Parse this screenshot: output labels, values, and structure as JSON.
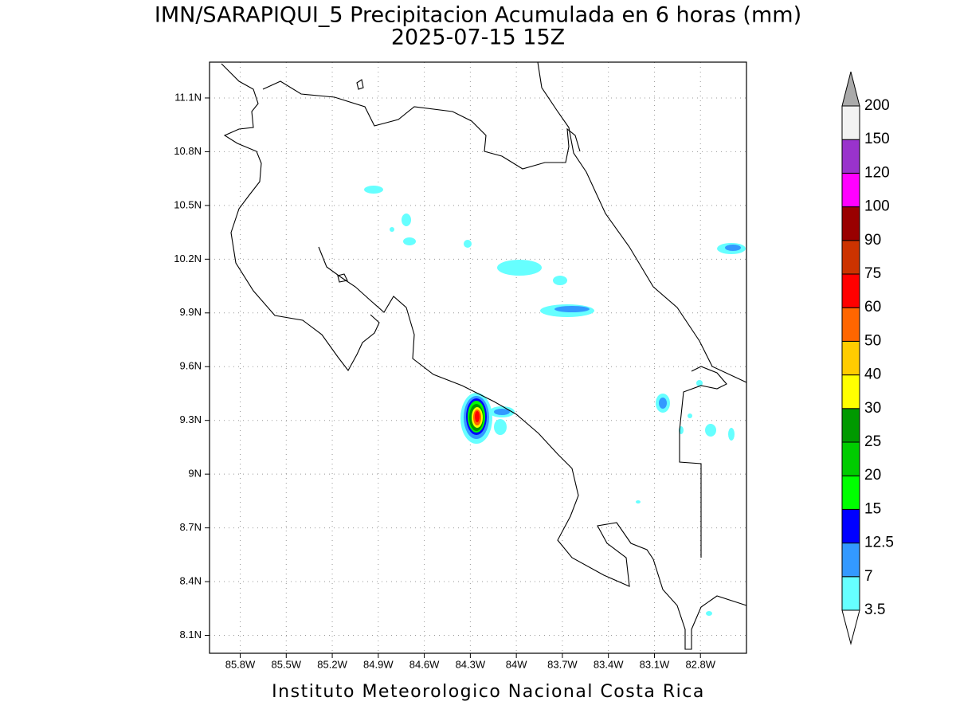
{
  "map": {
    "title": "IMN/SARAPIQUI_5 Precipitacion Acumulada en 6 horas (mm)",
    "subtitle": "2025-07-15 15Z",
    "footer": "Instituto Meteorologico Nacional Costa Rica",
    "xlim": [
      -86.0,
      -82.5
    ],
    "ylim": [
      8.0,
      11.3
    ],
    "xticks": [
      {
        "value": -85.8,
        "label": "85.8W"
      },
      {
        "value": -85.5,
        "label": "85.5W"
      },
      {
        "value": -85.2,
        "label": "85.2W"
      },
      {
        "value": -84.9,
        "label": "84.9W"
      },
      {
        "value": -84.6,
        "label": "84.6W"
      },
      {
        "value": -84.3,
        "label": "84.3W"
      },
      {
        "value": -84.0,
        "label": "84W"
      },
      {
        "value": -83.7,
        "label": "83.7W"
      },
      {
        "value": -83.4,
        "label": "83.4W"
      },
      {
        "value": -83.1,
        "label": "83.1W"
      },
      {
        "value": -82.8,
        "label": "82.8W"
      }
    ],
    "yticks": [
      {
        "value": 8.1,
        "label": "8.1N"
      },
      {
        "value": 8.4,
        "label": "8.4N"
      },
      {
        "value": 8.7,
        "label": "8.7N"
      },
      {
        "value": 9.0,
        "label": "9N"
      },
      {
        "value": 9.3,
        "label": "9.3N"
      },
      {
        "value": 9.6,
        "label": "9.6N"
      },
      {
        "value": 9.9,
        "label": "9.9N"
      },
      {
        "value": 10.2,
        "label": "10.2N"
      },
      {
        "value": 10.5,
        "label": "10.5N"
      },
      {
        "value": 10.8,
        "label": "10.8N"
      },
      {
        "value": 11.1,
        "label": "11.1N"
      }
    ],
    "grid": true,
    "colorbar": {
      "levels": [
        3.5,
        7,
        12.5,
        15,
        20,
        25,
        30,
        40,
        50,
        60,
        75,
        90,
        100,
        120,
        150,
        200
      ],
      "colors": [
        "#66ffff",
        "#3399ff",
        "#0000ff",
        "#00ff00",
        "#00cc00",
        "#009900",
        "#ffff00",
        "#ffcc00",
        "#ff6600",
        "#ff0000",
        "#cc3300",
        "#990000",
        "#ff00ff",
        "#9933cc",
        "#f2f2f2"
      ],
      "under_color": "#ffffff",
      "over_color": "#aaaaaa"
    }
  }
}
